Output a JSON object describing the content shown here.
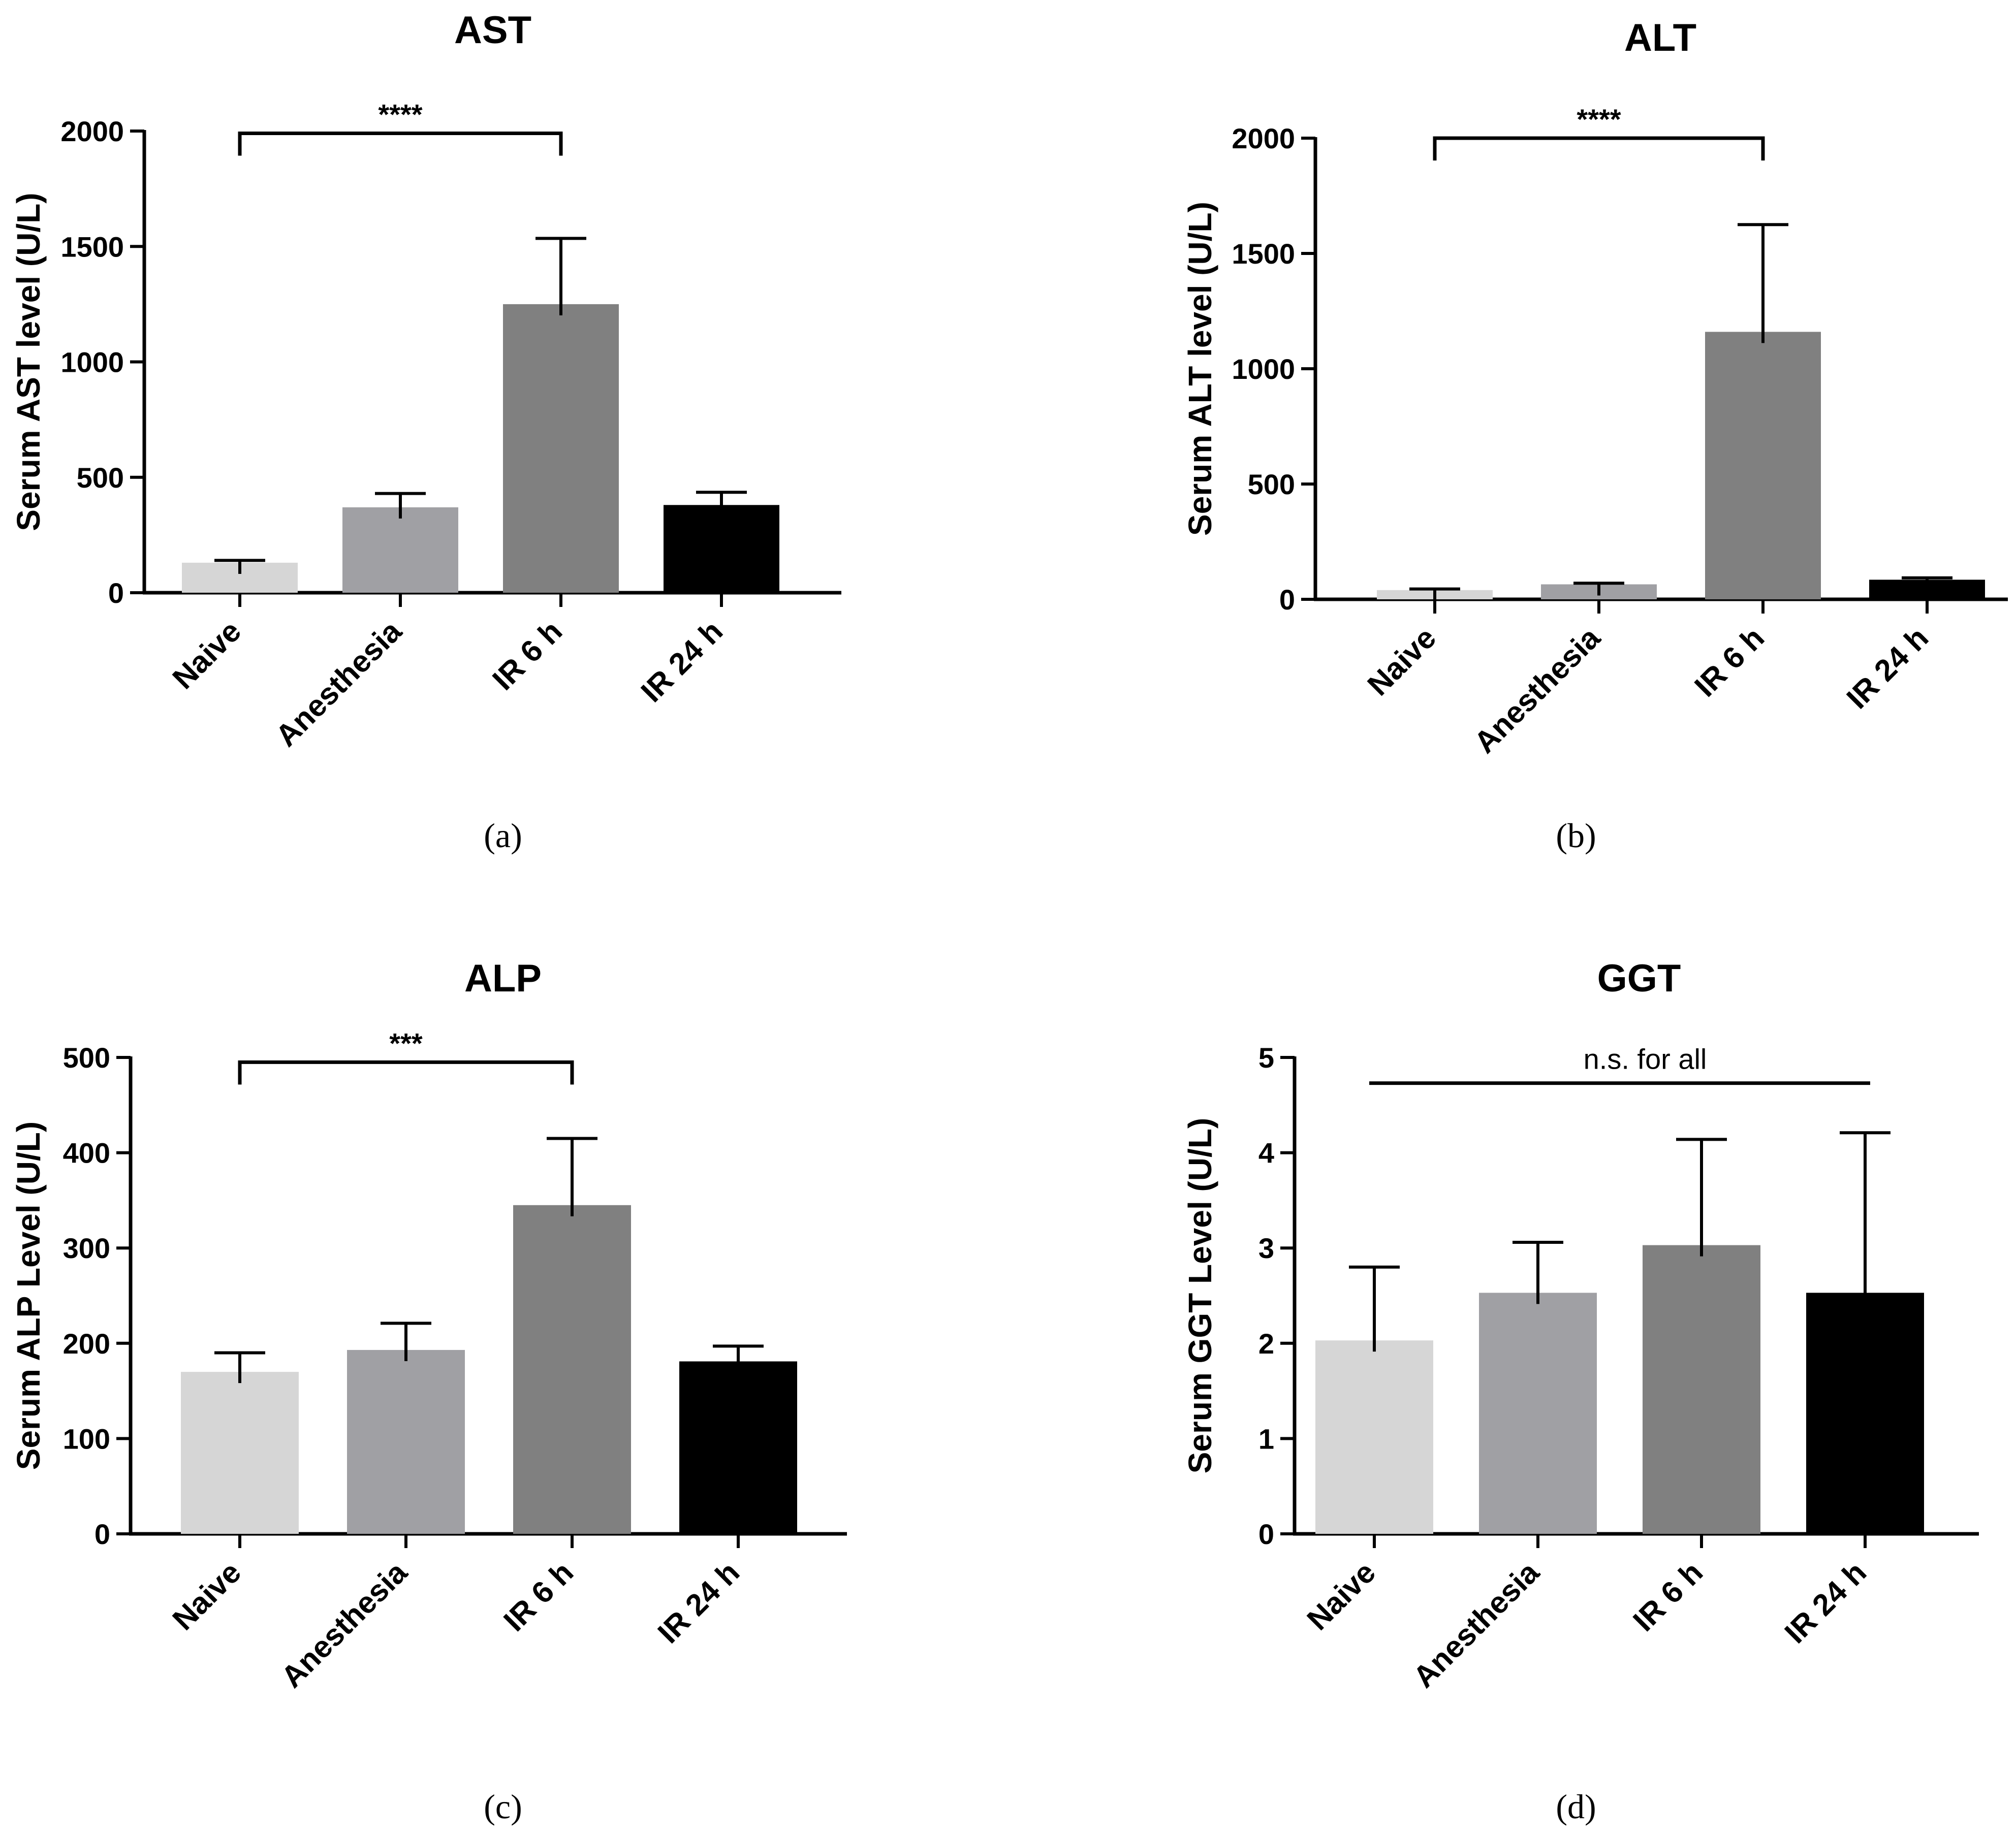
{
  "chart_data": [
    {
      "type": "bar",
      "panel": "(a)",
      "title": "AST",
      "ylabel": "Serum AST level (U/L)",
      "xlabel": "",
      "categories": [
        "Naive",
        "Anesthesia",
        "IR 6 h",
        "IR 24 h"
      ],
      "values": [
        130,
        370,
        1250,
        380
      ],
      "errors": [
        10,
        60,
        285,
        55
      ],
      "colors": [
        "#d6d6d6",
        "#a0a0a4",
        "#808080",
        "#000000"
      ],
      "ylim": [
        0,
        2000
      ],
      "yticks": [
        0,
        500,
        1000,
        1500,
        2000
      ],
      "significance": {
        "label": "****",
        "from": 0,
        "to": 2,
        "y": 1990
      }
    },
    {
      "type": "bar",
      "panel": "(b)",
      "title": "ALT",
      "ylabel": "Serum ALT level (U/L)",
      "xlabel": "",
      "categories": [
        "Naive",
        "Anesthesia",
        "IR 6 h",
        "IR 24 h"
      ],
      "values": [
        40,
        65,
        1160,
        85
      ],
      "errors": [
        5,
        5,
        465,
        8
      ],
      "colors": [
        "#d6d6d6",
        "#a0a0a4",
        "#808080",
        "#000000"
      ],
      "ylim": [
        0,
        2000
      ],
      "yticks": [
        0,
        500,
        1000,
        1500,
        2000
      ],
      "significance": {
        "label": "****",
        "from": 0,
        "to": 2,
        "y": 2000
      }
    },
    {
      "type": "bar",
      "panel": "(c)",
      "title": "ALP",
      "ylabel": "Serum ALP Level (U/L)",
      "xlabel": "",
      "categories": [
        "Naive",
        "Anesthesia",
        "IR 6 h",
        "IR 24 h"
      ],
      "values": [
        170,
        193,
        345,
        181
      ],
      "errors": [
        20,
        28,
        70,
        16
      ],
      "colors": [
        "#d6d6d6",
        "#a0a0a4",
        "#808080",
        "#000000"
      ],
      "ylim": [
        0,
        500
      ],
      "yticks": [
        0,
        100,
        200,
        300,
        400,
        500
      ],
      "significance": {
        "label": "***",
        "from": 0,
        "to": 2,
        "y": 495
      }
    },
    {
      "type": "bar",
      "panel": "(d)",
      "title": "GGT",
      "ylabel": "Serum GGT Level (U/L)",
      "xlabel": "",
      "categories": [
        "Naive",
        "Anesthesia",
        "IR 6 h",
        "IR 24 h"
      ],
      "values": [
        2.03,
        2.53,
        3.03,
        2.53
      ],
      "errors": [
        0.77,
        0.53,
        1.11,
        1.68
      ],
      "colors": [
        "#d6d6d6",
        "#a0a0a4",
        "#808080",
        "#000000"
      ],
      "ylim": [
        0,
        5
      ],
      "yticks": [
        0,
        1,
        2,
        3,
        4,
        5
      ],
      "significance": {
        "label": "n.s. for all",
        "from": 0,
        "to": 3,
        "y": 4.73,
        "style": "line"
      }
    }
  ]
}
